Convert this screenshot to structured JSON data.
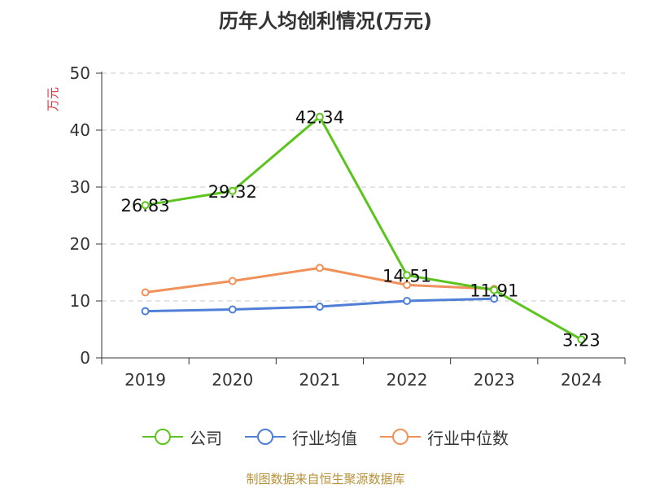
{
  "chart_data": {
    "type": "line",
    "title": "历年人均创利情况(万元)",
    "ylabel": "万元",
    "xlabel": "",
    "categories": [
      "2019",
      "2020",
      "2021",
      "2022",
      "2023",
      "2024"
    ],
    "ylim": [
      0,
      50
    ],
    "yticks": [
      0,
      10,
      20,
      30,
      40,
      50
    ],
    "grid": true,
    "legend_position": "bottom",
    "series": [
      {
        "name": "公司",
        "color": "#5cc41f",
        "values": [
          26.83,
          29.32,
          42.34,
          14.51,
          11.91,
          3.23
        ],
        "labels": [
          "26.83",
          "29.32",
          "42.34",
          "14.51",
          "11.91",
          "3.23"
        ]
      },
      {
        "name": "行业均值",
        "color": "#4f7fd6",
        "values": [
          8.2,
          8.5,
          9.0,
          10.0,
          10.4,
          null
        ]
      },
      {
        "name": "行业中位数",
        "color": "#f0905a",
        "values": [
          11.5,
          13.5,
          15.8,
          12.8,
          12.1,
          null
        ]
      }
    ]
  },
  "source": "制图数据来自恒生聚源数据库"
}
